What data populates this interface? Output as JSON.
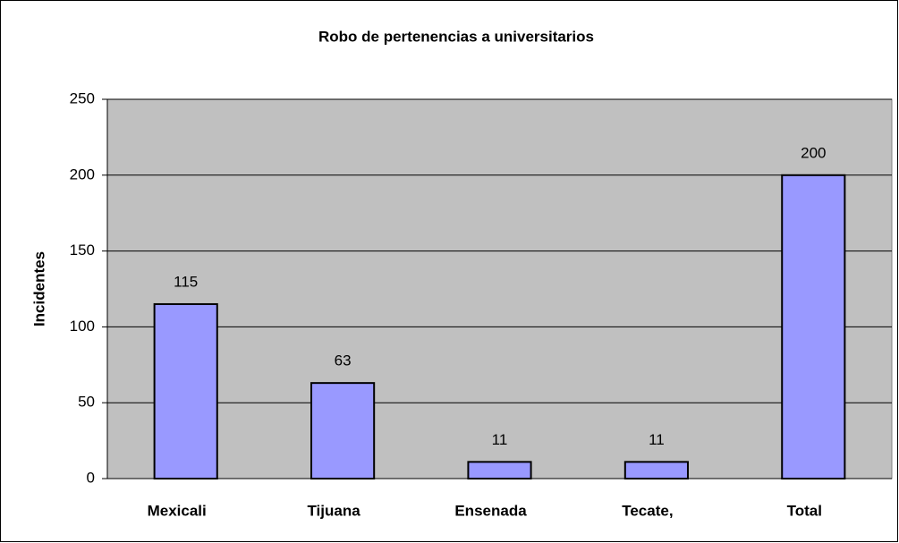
{
  "chart_data": {
    "type": "bar",
    "title": "Robo de pertenencias a universitarios",
    "y_label": "Incidentes",
    "categories": [
      "Mexicali",
      "Tijuana",
      "Ensenada",
      "Tecate,",
      "Total"
    ],
    "values": [
      115,
      63,
      11,
      11,
      200
    ],
    "color": "#9999ff",
    "ylim": [
      0,
      250
    ],
    "yticks": [
      0,
      50,
      100,
      150,
      200,
      250
    ],
    "grid": true
  }
}
